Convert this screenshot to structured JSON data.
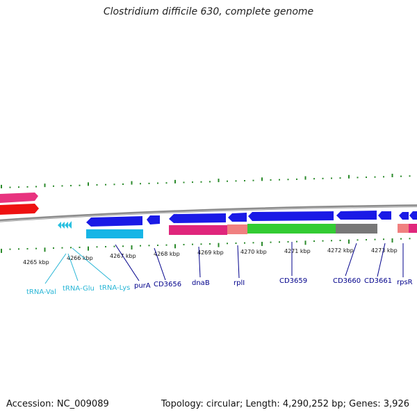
{
  "title": "Clostridium difficile 630, complete genome",
  "footer": {
    "accession": "Accession: NC_009089",
    "summary": "Topology: circular; Length: 4,290,252 bp; Genes: 3,926"
  },
  "colors": {
    "gene_label": "#00008b",
    "trna_label": "#29b6d6",
    "tick": "#2a8a2a",
    "backbone": "#888888"
  },
  "scale": {
    "labels": [
      "4265 kbp",
      "4266 kbp",
      "4267 kbp",
      "4268 kbp",
      "4269 kbp",
      "4270 kbp",
      "4271 kbp",
      "4272 kbp",
      "4273 kbp"
    ]
  },
  "genes": {
    "trna": [
      "tRNA-Val",
      "tRNA-Glu",
      "tRNA-Lys"
    ],
    "cds": [
      "purA",
      "CD3656",
      "dnaB",
      "rplI",
      "CD3659",
      "CD3660",
      "CD3661",
      "rpsR"
    ]
  }
}
